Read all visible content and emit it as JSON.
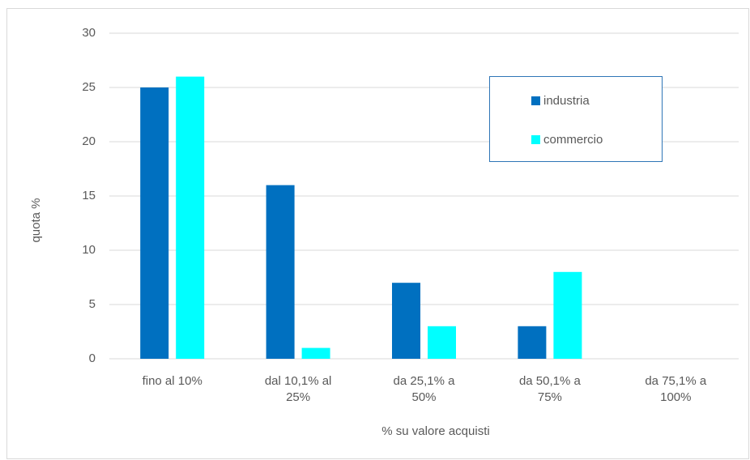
{
  "chart_data": {
    "type": "bar",
    "x_label": "% su valore acquisti",
    "y_label": "quota %",
    "categories": [
      "fino al 10%",
      "dal 10,1% al 25%",
      "da 25,1% a 50%",
      "da 50,1% a 75%",
      "da 75,1% a 100%"
    ],
    "series": [
      {
        "name": "industria",
        "color": "#0070c0",
        "values": [
          25,
          16,
          7,
          3,
          0
        ]
      },
      {
        "name": "commercio",
        "color": "#00ffff",
        "values": [
          26,
          1,
          3,
          8,
          0
        ]
      }
    ],
    "ylim": [
      0,
      30
    ],
    "yticks": [
      0,
      5,
      10,
      15,
      20,
      25,
      30
    ],
    "grid": true,
    "legend": "upper right"
  }
}
